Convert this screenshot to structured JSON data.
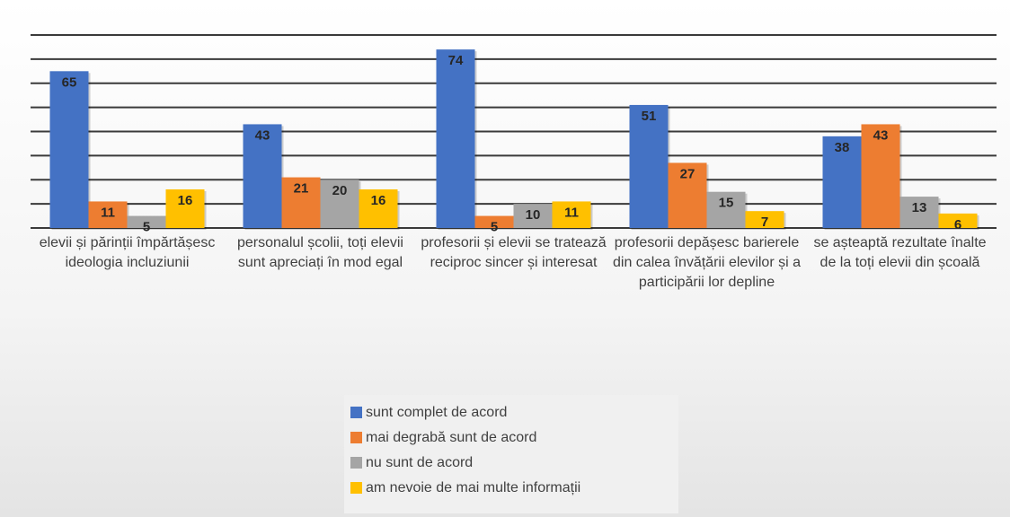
{
  "chart_data": {
    "type": "bar",
    "categories": [
      "elevii și părinții împărtășesc ideologia incluziunii",
      "personalul școlii, toți elevii sunt apreciați în mod egal",
      "profesorii și elevii se tratează reciproc sincer și interesat",
      "profesorii depășesc barierele din calea învățării elevilor și a participării lor depline",
      "se așteaptă rezultate înalte de la toți elevii din școală"
    ],
    "series": [
      {
        "name": "sunt complet de acord",
        "color": "#4472c4",
        "values": [
          65,
          43,
          74,
          51,
          38
        ]
      },
      {
        "name": "mai degrabă sunt de acord",
        "color": "#ed7d31",
        "values": [
          11,
          21,
          5,
          27,
          43
        ]
      },
      {
        "name": "nu sunt de acord",
        "color": "#a5a5a5",
        "values": [
          5,
          20,
          10,
          15,
          13
        ]
      },
      {
        "name": "am nevoie de mai multe informații",
        "color": "#ffc000",
        "values": [
          16,
          16,
          11,
          7,
          6
        ]
      }
    ],
    "ylim": [
      0,
      80
    ],
    "yticks": [
      0,
      10,
      20,
      30,
      40,
      50,
      60,
      70,
      80
    ],
    "grid": true,
    "legend": "bottom"
  }
}
